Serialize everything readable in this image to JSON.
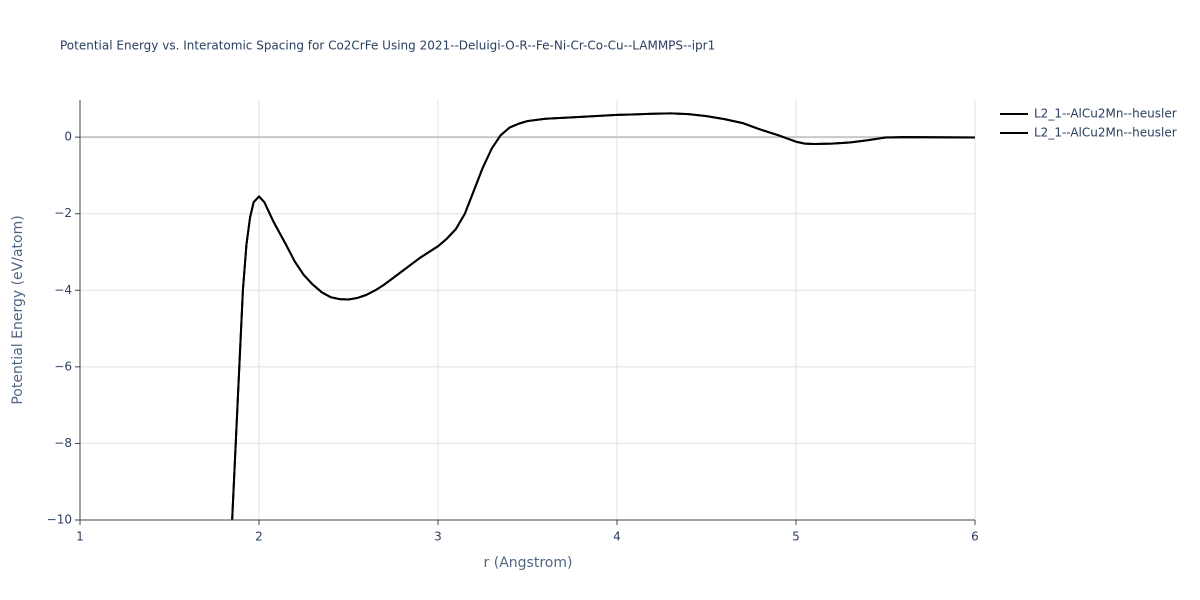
{
  "chart_data": {
    "type": "line",
    "title": "Potential Energy vs. Interatomic Spacing for Co2CrFe Using 2021--Deluigi-O-R--Fe-Ni-Cr-Co-Cu--LAMMPS--ipr1",
    "xlabel": "r (Angstrom)",
    "ylabel": "Potential Energy (eV/atom)",
    "x": [
      1.85,
      1.87,
      1.89,
      1.91,
      1.93,
      1.95,
      1.97,
      2.0,
      2.03,
      2.08,
      2.15,
      2.2,
      2.25,
      2.3,
      2.35,
      2.4,
      2.45,
      2.5,
      2.55,
      2.6,
      2.65,
      2.7,
      2.8,
      2.9,
      3.0,
      3.05,
      3.1,
      3.15,
      3.2,
      3.25,
      3.3,
      3.35,
      3.4,
      3.45,
      3.5,
      3.6,
      3.8,
      4.0,
      4.2,
      4.3,
      4.4,
      4.5,
      4.6,
      4.7,
      4.8,
      4.9,
      5.0,
      5.05,
      5.1,
      5.2,
      5.3,
      5.4,
      5.5,
      5.6,
      6.0
    ],
    "series": [
      {
        "name": "L2_1--AlCu2Mn--heusler",
        "color": "#000000",
        "values": [
          -10,
          -8,
          -6,
          -4,
          -2.8,
          -2.1,
          -1.7,
          -1.55,
          -1.7,
          -2.2,
          -2.8,
          -3.25,
          -3.6,
          -3.85,
          -4.05,
          -4.18,
          -4.23,
          -4.24,
          -4.2,
          -4.12,
          -4.0,
          -3.85,
          -3.5,
          -3.15,
          -2.85,
          -2.65,
          -2.4,
          -2.0,
          -1.4,
          -0.8,
          -0.3,
          0.05,
          0.25,
          0.35,
          0.42,
          0.48,
          0.53,
          0.58,
          0.61,
          0.62,
          0.6,
          0.55,
          0.47,
          0.37,
          0.2,
          0.05,
          -0.12,
          -0.17,
          -0.18,
          -0.17,
          -0.14,
          -0.08,
          -0.01,
          0.0,
          -0.01
        ]
      },
      {
        "name": "L2_1--AlCu2Mn--heusler",
        "color": "#000000",
        "values": [
          -10,
          -8,
          -6,
          -4,
          -2.8,
          -2.1,
          -1.7,
          -1.55,
          -1.7,
          -2.2,
          -2.8,
          -3.25,
          -3.6,
          -3.85,
          -4.05,
          -4.18,
          -4.23,
          -4.24,
          -4.2,
          -4.12,
          -4.0,
          -3.85,
          -3.5,
          -3.15,
          -2.85,
          -2.65,
          -2.4,
          -2.0,
          -1.4,
          -0.8,
          -0.3,
          0.05,
          0.25,
          0.35,
          0.42,
          0.48,
          0.53,
          0.58,
          0.61,
          0.62,
          0.6,
          0.55,
          0.47,
          0.37,
          0.2,
          0.05,
          -0.12,
          -0.17,
          -0.18,
          -0.17,
          -0.14,
          -0.08,
          -0.01,
          0.0,
          -0.01
        ]
      }
    ],
    "xlim": [
      1,
      6
    ],
    "xticks": [
      1,
      2,
      3,
      4,
      5,
      6
    ],
    "ylim": [
      -10,
      0.97
    ],
    "yticks": [
      {
        "value": -10,
        "label": "−10"
      },
      {
        "value": -8,
        "label": "−8"
      },
      {
        "value": -6,
        "label": "−6"
      },
      {
        "value": -4,
        "label": "−4"
      },
      {
        "value": -2,
        "label": "−2"
      },
      0
    ],
    "grid": true,
    "legend": "right"
  }
}
